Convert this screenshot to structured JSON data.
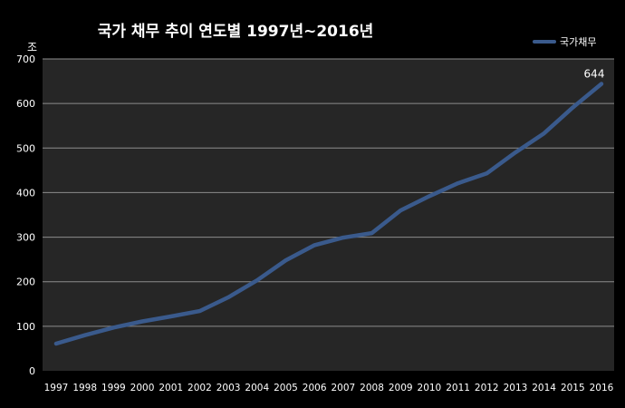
{
  "chart_data": {
    "type": "line",
    "title": "국가 채무 추이 연도별 1997년~2016년",
    "y_unit": "조",
    "xlabel": "",
    "ylabel": "",
    "ylim": [
      0,
      700
    ],
    "yticks": [
      0,
      100,
      200,
      300,
      400,
      500,
      600,
      700
    ],
    "categories": [
      "1997",
      "1998",
      "1999",
      "2000",
      "2001",
      "2002",
      "2003",
      "2004",
      "2005",
      "2006",
      "2007",
      "2008",
      "2009",
      "2010",
      "2011",
      "2012",
      "2013",
      "2014",
      "2015",
      "2016"
    ],
    "series": [
      {
        "name": "국가채무",
        "values": [
          61,
          80,
          97,
          111,
          122,
          134,
          165,
          203,
          248,
          282,
          299,
          309,
          360,
          392,
          421,
          443,
          490,
          533,
          591,
          644
        ],
        "color": "#3a5a8c"
      }
    ],
    "data_labels": [
      {
        "index": 19,
        "text": "644"
      }
    ],
    "legend_position": "top-right",
    "grid": true,
    "plot_background": "#262626",
    "background": "#000000"
  }
}
